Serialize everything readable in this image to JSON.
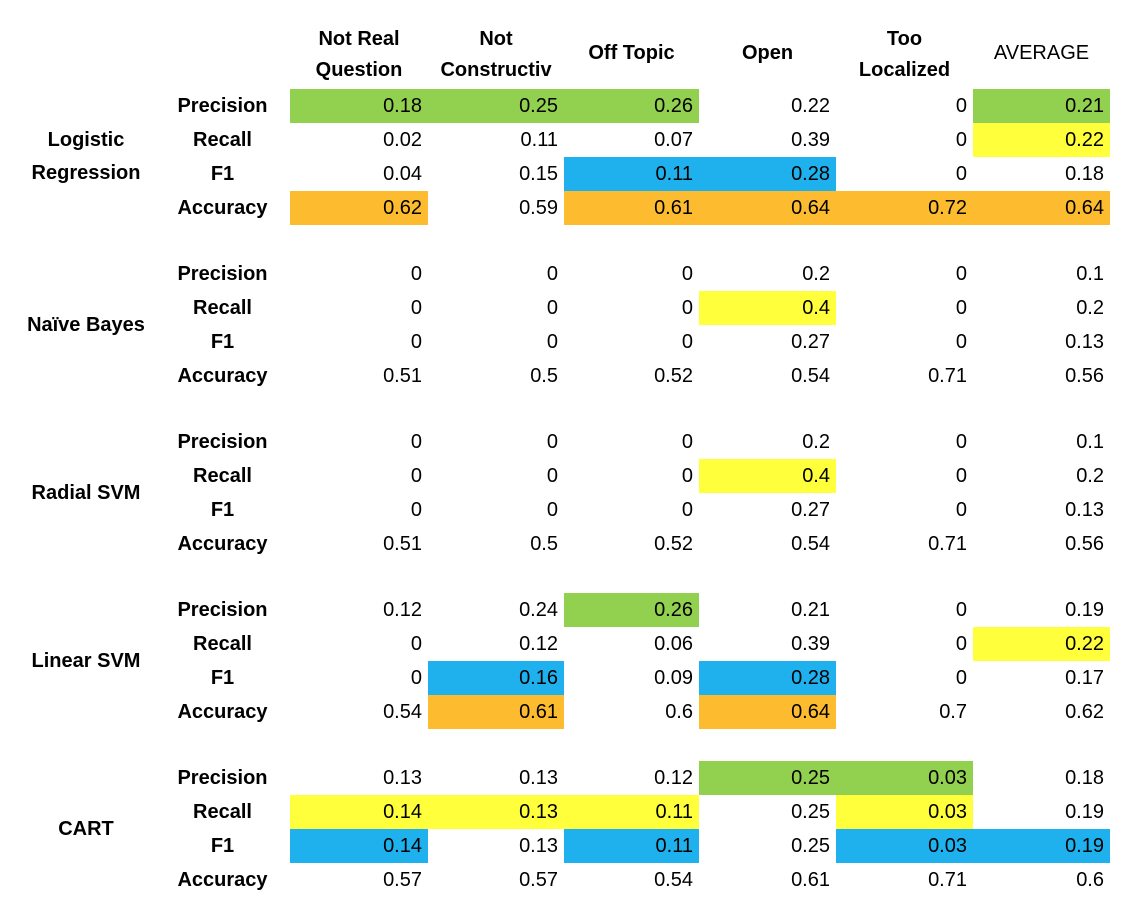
{
  "colors": {
    "green": "#92d050",
    "yellow": "#ffff3c",
    "blue": "#1fb1ee",
    "orange": "#fdbb2f"
  },
  "headers": [
    "Not Real\nQuestion",
    "Not\nConstructiv",
    "Off Topic",
    "Open",
    "Too\nLocalized",
    "AVERAGE"
  ],
  "metrics": [
    "Precision",
    "Recall",
    "F1",
    "Accuracy"
  ],
  "models": [
    {
      "name": "Logistic\nRegression",
      "rows": [
        {
          "values": [
            "0.18",
            "0.25",
            "0.26",
            "0.22",
            "0",
            "0.21"
          ],
          "highlights": [
            "green",
            "green",
            "green",
            "",
            "",
            "green"
          ]
        },
        {
          "values": [
            "0.02",
            "0.11",
            "0.07",
            "0.39",
            "0",
            "0.22"
          ],
          "highlights": [
            "",
            "",
            "",
            "",
            "",
            "yellow"
          ]
        },
        {
          "values": [
            "0.04",
            "0.15",
            "0.11",
            "0.28",
            "0",
            "0.18"
          ],
          "highlights": [
            "",
            "",
            "blue",
            "blue",
            "",
            ""
          ]
        },
        {
          "values": [
            "0.62",
            "0.59",
            "0.61",
            "0.64",
            "0.72",
            "0.64"
          ],
          "highlights": [
            "orange",
            "",
            "orange",
            "orange",
            "orange",
            "orange"
          ]
        }
      ]
    },
    {
      "name": "Naïve Bayes",
      "rows": [
        {
          "values": [
            "0",
            "0",
            "0",
            "0.2",
            "0",
            "0.1"
          ],
          "highlights": [
            "",
            "",
            "",
            "",
            "",
            ""
          ]
        },
        {
          "values": [
            "0",
            "0",
            "0",
            "0.4",
            "0",
            "0.2"
          ],
          "highlights": [
            "",
            "",
            "",
            "yellow",
            "",
            ""
          ]
        },
        {
          "values": [
            "0",
            "0",
            "0",
            "0.27",
            "0",
            "0.13"
          ],
          "highlights": [
            "",
            "",
            "",
            "",
            "",
            ""
          ]
        },
        {
          "values": [
            "0.51",
            "0.5",
            "0.52",
            "0.54",
            "0.71",
            "0.56"
          ],
          "highlights": [
            "",
            "",
            "",
            "",
            "",
            ""
          ]
        }
      ]
    },
    {
      "name": "Radial SVM",
      "rows": [
        {
          "values": [
            "0",
            "0",
            "0",
            "0.2",
            "0",
            "0.1"
          ],
          "highlights": [
            "",
            "",
            "",
            "",
            "",
            ""
          ]
        },
        {
          "values": [
            "0",
            "0",
            "0",
            "0.4",
            "0",
            "0.2"
          ],
          "highlights": [
            "",
            "",
            "",
            "yellow",
            "",
            ""
          ]
        },
        {
          "values": [
            "0",
            "0",
            "0",
            "0.27",
            "0",
            "0.13"
          ],
          "highlights": [
            "",
            "",
            "",
            "",
            "",
            ""
          ]
        },
        {
          "values": [
            "0.51",
            "0.5",
            "0.52",
            "0.54",
            "0.71",
            "0.56"
          ],
          "highlights": [
            "",
            "",
            "",
            "",
            "",
            ""
          ]
        }
      ]
    },
    {
      "name": "Linear SVM",
      "rows": [
        {
          "values": [
            "0.12",
            "0.24",
            "0.26",
            "0.21",
            "0",
            "0.19"
          ],
          "highlights": [
            "",
            "",
            "green",
            "",
            "",
            ""
          ]
        },
        {
          "values": [
            "0",
            "0.12",
            "0.06",
            "0.39",
            "0",
            "0.22"
          ],
          "highlights": [
            "",
            "",
            "",
            "",
            "",
            "yellow"
          ]
        },
        {
          "values": [
            "0",
            "0.16",
            "0.09",
            "0.28",
            "0",
            "0.17"
          ],
          "highlights": [
            "",
            "blue",
            "",
            "blue",
            "",
            ""
          ]
        },
        {
          "values": [
            "0.54",
            "0.61",
            "0.6",
            "0.64",
            "0.7",
            "0.62"
          ],
          "highlights": [
            "",
            "orange",
            "",
            "orange",
            "",
            ""
          ]
        }
      ]
    },
    {
      "name": "CART",
      "rows": [
        {
          "values": [
            "0.13",
            "0.13",
            "0.12",
            "0.25",
            "0.03",
            "0.18"
          ],
          "highlights": [
            "",
            "",
            "",
            "green",
            "green",
            ""
          ]
        },
        {
          "values": [
            "0.14",
            "0.13",
            "0.11",
            "0.25",
            "0.03",
            "0.19"
          ],
          "highlights": [
            "yellow",
            "yellow",
            "yellow",
            "",
            "yellow",
            ""
          ]
        },
        {
          "values": [
            "0.14",
            "0.13",
            "0.11",
            "0.25",
            "0.03",
            "0.19"
          ],
          "highlights": [
            "blue",
            "",
            "blue",
            "",
            "blue",
            "blue"
          ]
        },
        {
          "values": [
            "0.57",
            "0.57",
            "0.54",
            "0.61",
            "0.71",
            "0.6"
          ],
          "highlights": [
            "",
            "",
            "",
            "",
            "",
            ""
          ]
        }
      ]
    }
  ]
}
